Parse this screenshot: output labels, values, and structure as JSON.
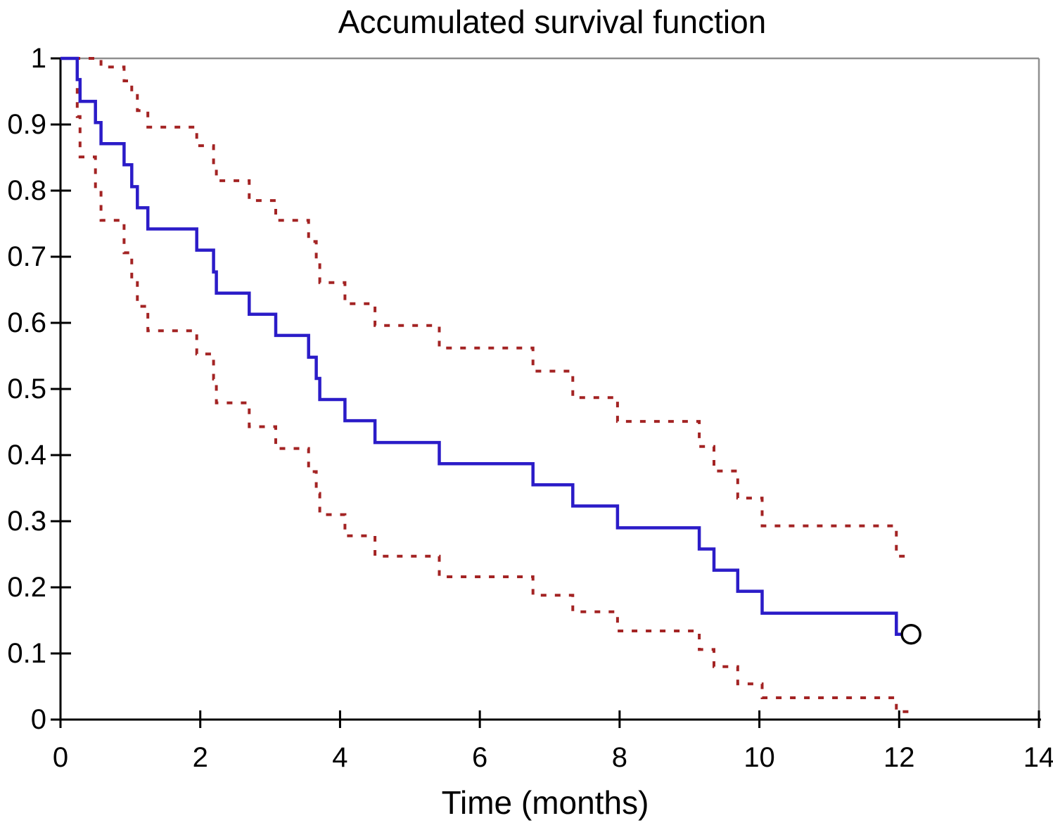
{
  "chart_data": {
    "type": "line",
    "subtype": "kaplan-meier-step",
    "title": "Accumulated survival function",
    "xlabel": "Time (months)",
    "ylabel": "",
    "xlim": [
      0,
      14
    ],
    "ylim": [
      0,
      1
    ],
    "grid": false,
    "legend": "none",
    "colors": {
      "survival_line": "#2b1cc8",
      "ci_line": "#a32323",
      "axis": "#000000",
      "border": "#8f8f8f",
      "background": "#ffffff",
      "marker_stroke": "#000000"
    },
    "axes": {
      "x": {
        "tick_values": [
          0,
          2,
          4,
          6,
          8,
          10,
          12,
          14
        ],
        "tick_labels": [
          "0",
          "2",
          "4",
          "6",
          "8",
          "10",
          "12",
          "14"
        ]
      },
      "y": {
        "tick_values": [
          0,
          0.1,
          0.2,
          0.3,
          0.4,
          0.5,
          0.6,
          0.7,
          0.8,
          0.9,
          1
        ],
        "tick_labels": [
          "0",
          "0.1",
          "0.2",
          "0.3",
          "0.4",
          "0.5",
          "0.6",
          "0.7",
          "0.8",
          "0.9",
          "1"
        ]
      }
    },
    "series": [
      {
        "name": "survival-estimate",
        "style": "solid",
        "color": "#2b1cc8",
        "stroke_width": 4.5,
        "start": [
          0,
          1.0
        ],
        "end_t": 12.05,
        "drops": [
          [
            0.24,
            0.968
          ],
          [
            0.28,
            0.935
          ],
          [
            0.5,
            0.903
          ],
          [
            0.58,
            0.871
          ],
          [
            0.91,
            0.839
          ],
          [
            1.02,
            0.806
          ],
          [
            1.1,
            0.774
          ],
          [
            1.25,
            0.742
          ],
          [
            1.95,
            0.71
          ],
          [
            2.19,
            0.677
          ],
          [
            2.23,
            0.645
          ],
          [
            2.7,
            0.613
          ],
          [
            3.08,
            0.581
          ],
          [
            3.55,
            0.548
          ],
          [
            3.66,
            0.516
          ],
          [
            3.71,
            0.484
          ],
          [
            4.07,
            0.452
          ],
          [
            4.5,
            0.419
          ],
          [
            5.42,
            0.387
          ],
          [
            6.76,
            0.355
          ],
          [
            7.33,
            0.323
          ],
          [
            7.97,
            0.29
          ],
          [
            9.14,
            0.258
          ],
          [
            9.35,
            0.226
          ],
          [
            9.69,
            0.194
          ],
          [
            10.04,
            0.161
          ],
          [
            11.96,
            0.129
          ]
        ]
      },
      {
        "name": "upper-95ci",
        "style": "dotted",
        "color": "#a32323",
        "stroke_width": 4,
        "start": [
          0,
          1.0
        ],
        "end_t": 12.15,
        "drops": [
          [
            0.58,
            0.987
          ],
          [
            0.91,
            0.966
          ],
          [
            1.02,
            0.947
          ],
          [
            1.1,
            0.921
          ],
          [
            1.25,
            0.896
          ],
          [
            1.95,
            0.868
          ],
          [
            2.19,
            0.838
          ],
          [
            2.23,
            0.815
          ],
          [
            2.7,
            0.785
          ],
          [
            3.08,
            0.755
          ],
          [
            3.55,
            0.723
          ],
          [
            3.66,
            0.692
          ],
          [
            3.71,
            0.661
          ],
          [
            4.07,
            0.629
          ],
          [
            4.5,
            0.596
          ],
          [
            5.42,
            0.562
          ],
          [
            6.76,
            0.527
          ],
          [
            7.33,
            0.487
          ],
          [
            7.97,
            0.451
          ],
          [
            9.14,
            0.413
          ],
          [
            9.35,
            0.376
          ],
          [
            9.69,
            0.335
          ],
          [
            10.04,
            0.293
          ],
          [
            11.96,
            0.247
          ]
        ]
      },
      {
        "name": "lower-95ci",
        "style": "dotted",
        "color": "#a32323",
        "stroke_width": 4,
        "start": [
          0.24,
          0.955
        ],
        "end_t": 12.18,
        "drops": [
          [
            0.24,
            0.912
          ],
          [
            0.28,
            0.851
          ],
          [
            0.5,
            0.801
          ],
          [
            0.58,
            0.755
          ],
          [
            0.91,
            0.706
          ],
          [
            1.02,
            0.664
          ],
          [
            1.1,
            0.625
          ],
          [
            1.25,
            0.588
          ],
          [
            1.95,
            0.553
          ],
          [
            2.19,
            0.515
          ],
          [
            2.23,
            0.479
          ],
          [
            2.7,
            0.443
          ],
          [
            3.08,
            0.41
          ],
          [
            3.55,
            0.375
          ],
          [
            3.66,
            0.342
          ],
          [
            3.71,
            0.31
          ],
          [
            4.07,
            0.278
          ],
          [
            4.5,
            0.247
          ],
          [
            5.42,
            0.216
          ],
          [
            6.76,
            0.188
          ],
          [
            7.33,
            0.163
          ],
          [
            7.97,
            0.134
          ],
          [
            9.14,
            0.106
          ],
          [
            9.35,
            0.08
          ],
          [
            9.69,
            0.054
          ],
          [
            10.04,
            0.033
          ],
          [
            11.96,
            0.012
          ]
        ]
      }
    ],
    "censor_marker": {
      "t": 12.17,
      "value": 0.129,
      "shape": "open-circle"
    }
  }
}
